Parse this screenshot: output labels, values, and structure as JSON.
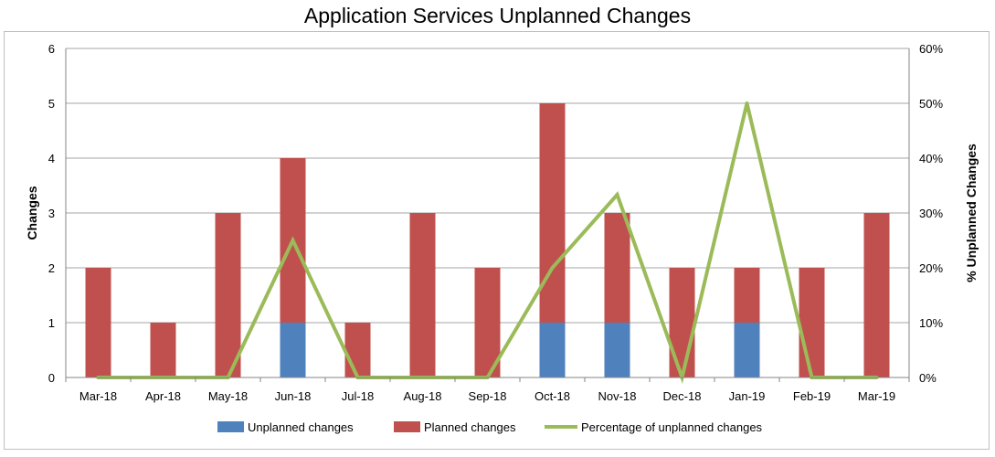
{
  "chart_data": {
    "type": "bar",
    "title": "Application Services Unplanned Changes",
    "ylabel": "Changes",
    "y2label": "% Unplanned Changes",
    "ylim": [
      0,
      6
    ],
    "y2lim": [
      0,
      0.6
    ],
    "yticks": [
      "0",
      "1",
      "2",
      "3",
      "4",
      "5",
      "6"
    ],
    "y2ticks": [
      "0%",
      "10%",
      "20%",
      "30%",
      "40%",
      "50%",
      "60%"
    ],
    "grid": true,
    "legend_position": "bottom",
    "categories": [
      "Mar-18",
      "Apr-18",
      "May-18",
      "Jun-18",
      "Jul-18",
      "Aug-18",
      "Sep-18",
      "Oct-18",
      "Nov-18",
      "Dec-18",
      "Jan-19",
      "Feb-19",
      "Mar-19"
    ],
    "series": [
      {
        "name": "Unplanned changes",
        "type": "bar",
        "stacked": true,
        "color": "#4f81bd",
        "values": [
          0,
          0,
          0,
          1,
          0,
          0,
          0,
          1,
          1,
          0,
          1,
          0,
          0
        ]
      },
      {
        "name": "Planned changes",
        "type": "bar",
        "stacked": true,
        "color": "#c0504d",
        "values": [
          2,
          1,
          3,
          3,
          1,
          3,
          2,
          4,
          2,
          2,
          1,
          2,
          3
        ]
      },
      {
        "name": "Percentage of unplanned changes",
        "type": "line",
        "axis": "right",
        "color": "#9bbb59",
        "values": [
          0,
          0,
          0,
          0.25,
          0,
          0,
          0,
          0.2,
          0.3333,
          0,
          0.5,
          0,
          0
        ]
      }
    ]
  }
}
